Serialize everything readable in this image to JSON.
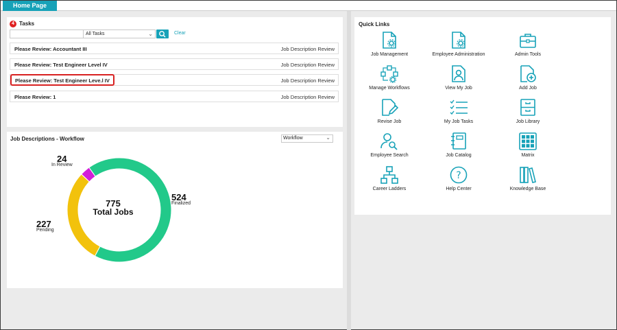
{
  "header": {
    "tab_label": "Home Page"
  },
  "tasks": {
    "count": "4",
    "title": "Tasks",
    "search_value": "",
    "filter_selected": "All Tasks",
    "clear_label": "Clear",
    "rows": [
      {
        "name": "Please Review: Accountant III",
        "type": "Job Description Review"
      },
      {
        "name": "Please Review: Test Engineer Level IV",
        "type": "Job Description Review"
      },
      {
        "name": "Please Review: Test Engineer Leve.l IV",
        "type": "Job Description Review"
      },
      {
        "name": "Please Review: 1",
        "type": "Job Description Review"
      }
    ]
  },
  "workflow": {
    "title": "Job Descriptions - Workflow",
    "dropdown_selected": "Workflow",
    "total_value": "775",
    "total_label": "Total Jobs",
    "segments": [
      {
        "name": "Finalized",
        "value": "524",
        "color": "#22c98a"
      },
      {
        "name": "Pending",
        "value": "227",
        "color": "#f2c20c"
      },
      {
        "name": "In Review",
        "value": "24",
        "color": "#d21ed8"
      }
    ]
  },
  "quick_links": {
    "title": "Quick Links",
    "accent_color": "#17a2b8",
    "items": [
      {
        "label": "Job Management",
        "icon": "document-gear-icon"
      },
      {
        "label": "Employee Administration",
        "icon": "document-gear-icon"
      },
      {
        "label": "Admin Tools",
        "icon": "briefcase-icon"
      },
      {
        "label": "Manage Workflows",
        "icon": "workflow-icon"
      },
      {
        "label": "View My Job",
        "icon": "person-document-icon"
      },
      {
        "label": "Add Job",
        "icon": "document-plus-icon"
      },
      {
        "label": "Revise Job",
        "icon": "document-pencil-icon"
      },
      {
        "label": "My Job Tasks",
        "icon": "checklist-icon"
      },
      {
        "label": "Job Library",
        "icon": "cabinet-icon"
      },
      {
        "label": "Employee Search",
        "icon": "person-search-icon"
      },
      {
        "label": "Job Catalog",
        "icon": "catalog-icon"
      },
      {
        "label": "Matrix",
        "icon": "grid-icon"
      },
      {
        "label": "Career Ladders",
        "icon": "org-chart-icon"
      },
      {
        "label": "Help Center",
        "icon": "help-icon"
      },
      {
        "label": "Knowledge Base",
        "icon": "books-icon"
      }
    ]
  }
}
